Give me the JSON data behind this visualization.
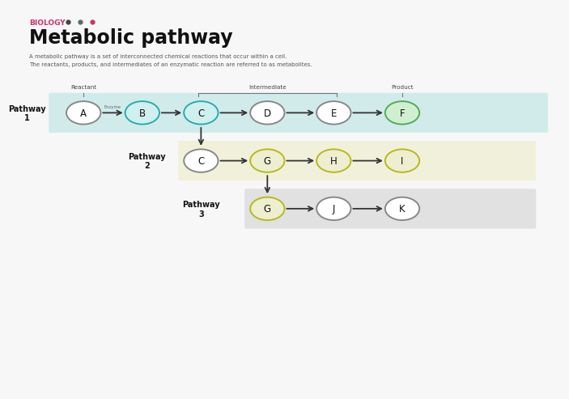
{
  "bg_color": "#f7f7f7",
  "title": "Metabolic pathway",
  "biology_label": "BIOLOGY",
  "biology_color": "#cc3366",
  "dot_colors": [
    "#444444",
    "#666666",
    "#cc3366"
  ],
  "subtitle_line1": "A metabolic pathway is a set of interconnected chemical reactions that occur within a cell.",
  "subtitle_line2": "The reactants, products, and intermediates of an enzymatic reaction are referred to as metabolites.",
  "pathway1_label": "Pathway\n1",
  "pathway2_label": "Pathway\n2",
  "pathway3_label": "Pathway\n3",
  "pathway1_nodes": [
    "A",
    "B",
    "C",
    "D",
    "E",
    "F"
  ],
  "pathway2_nodes": [
    "C",
    "G",
    "H",
    "I"
  ],
  "pathway3_nodes": [
    "G",
    "J",
    "K"
  ],
  "reactant_label": "Reactant",
  "intermediate_label": "Intermediate",
  "product_label": "Product",
  "enzyme_label": "Enzyme",
  "pathway1_bg": "#c5e8e8",
  "pathway2_bg": "#ededc0",
  "pathway3_bg": "#d8d8d8",
  "node_fill_B": "#d0efef",
  "node_fill_C_p1": "#d0efef",
  "node_fill_F": "#d0efd0",
  "node_fill_G_p2": "#eeeed0",
  "node_fill_H": "#eeeed0",
  "node_fill_I": "#eeeed0",
  "node_fill_G_p3": "#eeeed0",
  "node_fill_default": "#ffffff",
  "node_edge_B": "#2aacac",
  "node_edge_C_p1": "#2aacac",
  "node_edge_F": "#55aa55",
  "node_edge_G_p2": "#b8b820",
  "node_edge_H": "#b8b820",
  "node_edge_I": "#b8b820",
  "node_edge_G_p3": "#b8b820",
  "node_edge_default": "#888888",
  "arrow_color": "#333333",
  "label_color": "#111111",
  "sub_color": "#555555"
}
